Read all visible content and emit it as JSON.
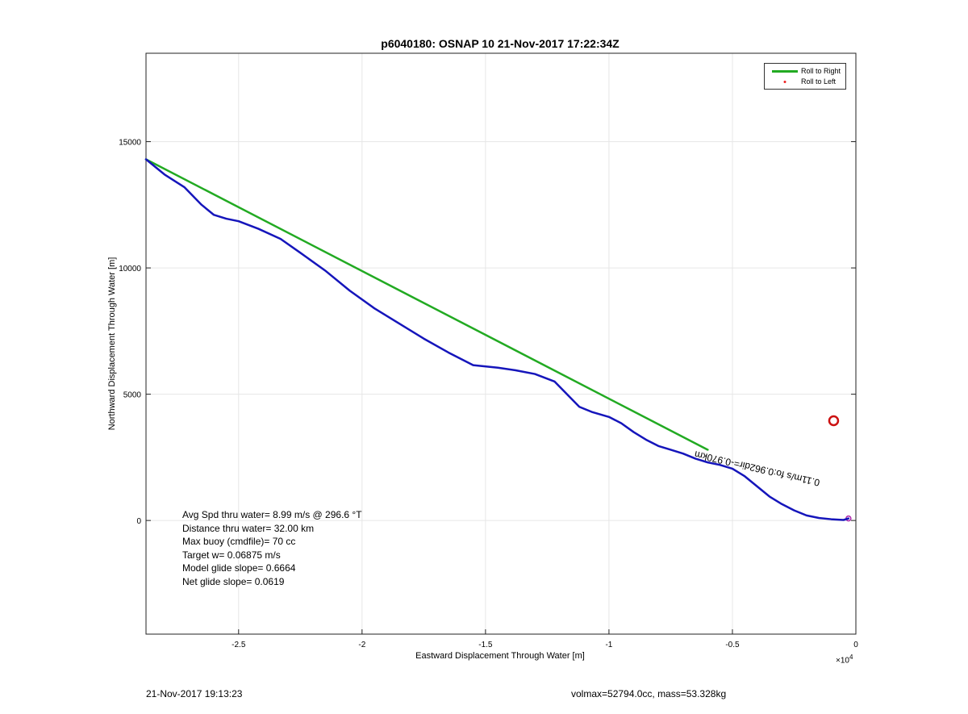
{
  "chart_data": {
    "type": "line",
    "title": "p6040180: OSNAP 10 21-Nov-2017 17:22:34Z",
    "xlabel": "Eastward Displacement Through Water [m]",
    "ylabel": "Northward Displacement Through Water [m]",
    "x_exponent_base": "×10",
    "x_exponent_power": "4",
    "xlim": [
      -2.875,
      0
    ],
    "ylim": [
      -4500,
      18500
    ],
    "xticks": [
      -2.5,
      -2,
      -1.5,
      -1,
      -0.5,
      0
    ],
    "xtick_labels": [
      "-2.5",
      "-2",
      "-1.5",
      "-1",
      "-0.5",
      "0"
    ],
    "yticks": [
      0,
      5000,
      10000,
      15000
    ],
    "ytick_labels": [
      "0",
      "5000",
      "10000",
      "15000"
    ],
    "grid": true,
    "legend_position": "top-right",
    "series": [
      {
        "name": "Roll to Right",
        "color": "#22aa22",
        "style": "line",
        "x": [
          -2.875,
          -0.6
        ],
        "y": [
          14300,
          2800
        ]
      },
      {
        "name": "Roll to Left",
        "color": "#ee2222",
        "style": "marker",
        "x": [
          -0.03
        ],
        "y": [
          80
        ]
      },
      {
        "name": "",
        "color": "#1515bb",
        "style": "line",
        "x": [
          -2.875,
          -2.8,
          -2.72,
          -2.65,
          -2.6,
          -2.55,
          -2.5,
          -2.42,
          -2.33,
          -2.25,
          -2.15,
          -2.05,
          -1.95,
          -1.85,
          -1.75,
          -1.65,
          -1.55,
          -1.45,
          -1.38,
          -1.3,
          -1.22,
          -1.17,
          -1.12,
          -1.07,
          -1.0,
          -0.95,
          -0.9,
          -0.85,
          -0.8,
          -0.75,
          -0.7,
          -0.65,
          -0.6,
          -0.55,
          -0.5,
          -0.45,
          -0.4,
          -0.35,
          -0.3,
          -0.25,
          -0.2,
          -0.15,
          -0.1,
          -0.05,
          -0.03
        ],
        "y": [
          14300,
          13700,
          13200,
          12500,
          12100,
          11950,
          11850,
          11550,
          11150,
          10600,
          9900,
          9100,
          8400,
          7800,
          7200,
          6650,
          6150,
          6050,
          5950,
          5800,
          5500,
          5000,
          4500,
          4300,
          4100,
          3850,
          3500,
          3200,
          2950,
          2800,
          2650,
          2450,
          2300,
          2200,
          2050,
          1750,
          1350,
          950,
          650,
          400,
          200,
          100,
          50,
          20,
          80
        ]
      },
      {
        "name": "",
        "color": "#cc1111",
        "style": "circle",
        "x": [
          -0.09
        ],
        "y": [
          3950
        ]
      }
    ],
    "annotation_text": "0.11m/s fo:0.962dir=-0.970km"
  },
  "legend": {
    "items": [
      {
        "label": "Roll to Right",
        "color": "#22aa22",
        "kind": "line"
      },
      {
        "label": "Roll to Left",
        "color": "#ee2222",
        "kind": "dot"
      }
    ]
  },
  "stats": {
    "avg_speed": "Avg Spd thru water=  8.99 m/s @ 296.6 °T",
    "distance": "Distance thru water= 32.00 km",
    "max_buoy": "Max buoy (cmdfile)= 70 cc",
    "target_w": "Target w= 0.06875 m/s",
    "model_glide": "Model glide slope= 0.6664",
    "net_glide": "Net glide slope= 0.0619"
  },
  "footer": {
    "timestamp": "21-Nov-2017 19:13:23",
    "volmax_mass": "volmax=52794.0cc, mass=53.328kg"
  }
}
